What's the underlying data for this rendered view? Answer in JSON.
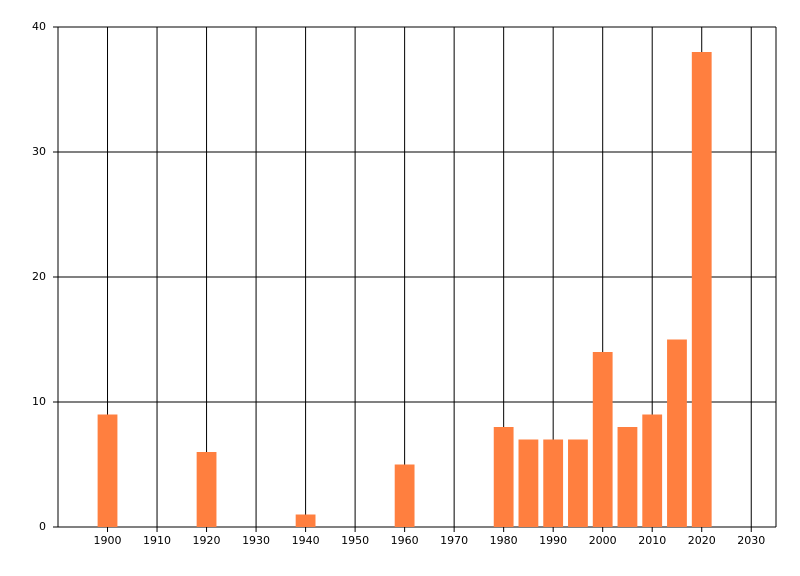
{
  "chart_data": {
    "type": "bar",
    "x": [
      1900,
      1920,
      1940,
      1960,
      1980,
      1985,
      1990,
      1995,
      2000,
      2005,
      2010,
      2015,
      2020
    ],
    "values": [
      9,
      6,
      1,
      5,
      8,
      7,
      7,
      7,
      14,
      8,
      9,
      15,
      38
    ],
    "color": "#ff7f3f",
    "xlim": [
      1890,
      2035
    ],
    "xticks": [
      1900,
      1910,
      1920,
      1930,
      1940,
      1950,
      1960,
      1970,
      1980,
      1990,
      2000,
      2010,
      2020,
      2030
    ],
    "ylim": [
      0,
      40
    ],
    "yticks": [
      0,
      10,
      20,
      30,
      40
    ],
    "grid": true
  }
}
